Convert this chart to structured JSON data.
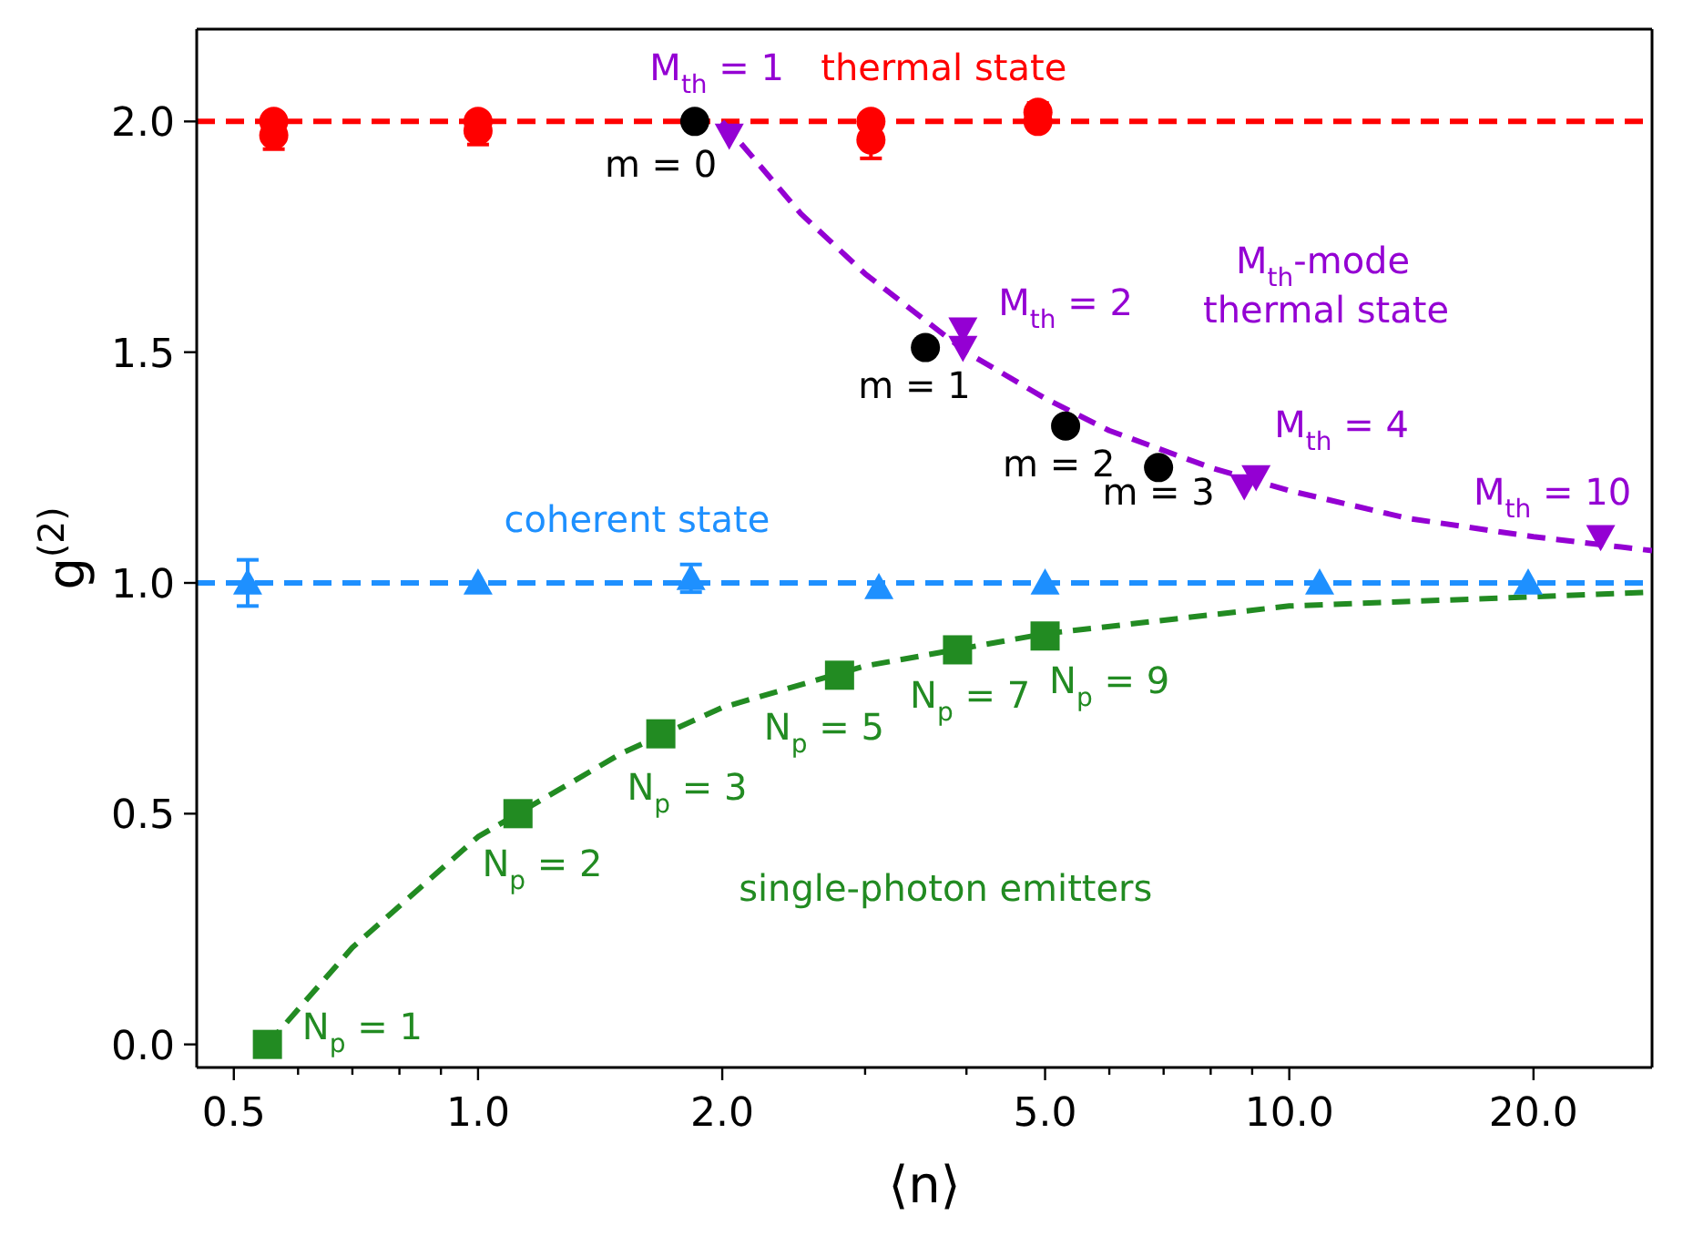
{
  "chart_data": {
    "type": "scatter",
    "xlabel": "⟨n⟩",
    "ylabel": "g$^{(2)}$",
    "log": "x",
    "xlim": [
      0.45,
      28
    ],
    "ylim": [
      -0.05,
      2.2
    ],
    "xticks": [
      {
        "value": 0.5,
        "label": "0.5"
      },
      {
        "value": 0.6,
        "label": null
      },
      {
        "value": 0.7,
        "label": null
      },
      {
        "value": 0.8,
        "label": null
      },
      {
        "value": 0.9,
        "label": null
      },
      {
        "value": 1,
        "label": "1.0"
      },
      {
        "value": 2,
        "label": "2.0"
      },
      {
        "value": 3,
        "label": null
      },
      {
        "value": 4,
        "label": null
      },
      {
        "value": 5,
        "label": "5.0"
      },
      {
        "value": 6,
        "label": null
      },
      {
        "value": 7,
        "label": null
      },
      {
        "value": 8,
        "label": null
      },
      {
        "value": 9,
        "label": null
      },
      {
        "value": 10,
        "label": "10.0"
      },
      {
        "value": 20,
        "label": "20.0"
      }
    ],
    "yticks": [
      {
        "value": 0,
        "label": "0.0"
      },
      {
        "value": 0.5,
        "label": "0.5"
      },
      {
        "value": 1,
        "label": "1.0"
      },
      {
        "value": 1.5,
        "label": "1.5"
      },
      {
        "value": 2,
        "label": "2.0"
      }
    ],
    "ref_lines": [
      {
        "axis": "y",
        "value": 2,
        "color": "#ff0000",
        "line_style": "dashed"
      },
      {
        "axis": "y",
        "value": 1,
        "color": "#1e90ff",
        "line_style": "dashed"
      }
    ],
    "series": [
      {
        "type": "line",
        "color": "#9400d3",
        "line_style": "dashed",
        "marker": "none",
        "x": [
          2,
          2.5,
          3,
          4,
          5,
          6,
          8,
          10,
          14,
          20,
          28
        ],
        "values": [
          2,
          1.8,
          1.67,
          1.5,
          1.4,
          1.33,
          1.25,
          1.2,
          1.14,
          1.1,
          1.07
        ]
      },
      {
        "type": "line",
        "color": "#228b22",
        "line_style": "dashed",
        "marker": "none",
        "x": [
          0.55,
          0.7,
          1,
          1.5,
          2,
          3,
          5,
          10,
          20,
          28
        ],
        "values": [
          0,
          0.21,
          0.45,
          0.63,
          0.73,
          0.82,
          0.89,
          0.95,
          0.97,
          0.98
        ]
      },
      {
        "color": "#ff0000",
        "marker": "circle",
        "x": [
          0.56,
          1,
          3.05,
          4.9
        ],
        "values": [
          2,
          2,
          2,
          2
        ]
      },
      {
        "color": "#ff0000",
        "marker": "circle",
        "x": [
          0.56,
          1,
          3.05,
          4.9
        ],
        "values": [
          1.97,
          1.98,
          1.96,
          2.02
        ],
        "errors": [
          0.03,
          0.03,
          0.04,
          0.02
        ]
      },
      {
        "color": "#1e90ff",
        "marker": "triangle",
        "x": [
          0.52,
          1,
          1.83,
          3.12,
          5,
          10.9,
          19.7
        ],
        "values": [
          1,
          1,
          1.01,
          0.99,
          1,
          1,
          1
        ],
        "errors": [
          0.05,
          null,
          0.03,
          null,
          null,
          null,
          null
        ]
      },
      {
        "color": "#228b22",
        "marker": "square",
        "x": [
          0.55,
          1.12,
          1.68,
          2.79,
          3.9,
          5
        ],
        "values": [
          0,
          0.5,
          0.673,
          0.8,
          0.855,
          0.885
        ]
      },
      {
        "color": "#9400d3",
        "marker": "triangle-down",
        "x": [
          2.04,
          3.96,
          3.96,
          8.8,
          9.1,
          24.2
        ],
        "values": [
          1.97,
          1.55,
          1.51,
          1.21,
          1.23,
          1.1
        ]
      },
      {
        "color": "#000000",
        "marker": "circle",
        "x": [
          1.85,
          3.56,
          5.3,
          6.9
        ],
        "values": [
          2,
          1.51,
          1.34,
          1.25
        ]
      }
    ],
    "annotations": [
      "M$_{th}$ = 1",
      "thermal state",
      "m = 0",
      "m = 1",
      "m = 2",
      "m = 3",
      "M$_{th}$ = 2",
      "M$_{th}$-mode",
      "thermal state",
      "M$_{th}$ = 4",
      "M$_{th}$ = 10",
      "coherent state",
      "N$_{p}$ = 1",
      "N$_{p}$ = 2",
      "N$_{p}$ = 3",
      "N$_{p}$ = 5",
      "N$_{p}$ = 7",
      "N$_{p}$ = 9",
      "single-photon emitters"
    ]
  }
}
